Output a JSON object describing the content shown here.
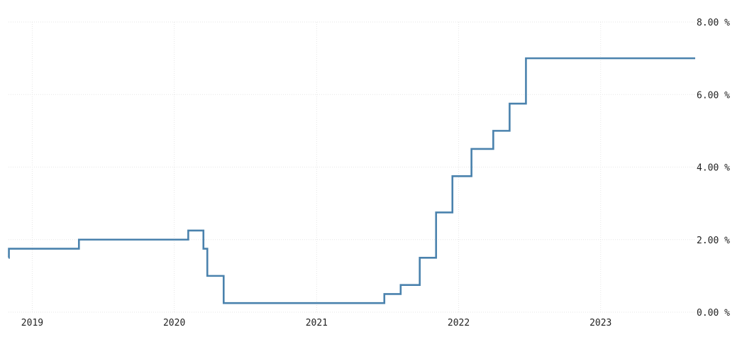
{
  "chart_data": {
    "type": "line",
    "step": true,
    "title": "",
    "xlabel": "",
    "ylabel": "",
    "ylim": [
      0,
      8
    ],
    "xlim": [
      "2018-11-01",
      "2023-09-01"
    ],
    "y_ticks": [
      {
        "value": 0,
        "label": "0.00 %"
      },
      {
        "value": 2,
        "label": "2.00 %"
      },
      {
        "value": 4,
        "label": "4.00 %"
      },
      {
        "value": 6,
        "label": "6.00 %"
      },
      {
        "value": 8,
        "label": "8.00 %"
      }
    ],
    "x_ticks": [
      {
        "value": "2019-01-01",
        "label": "2019"
      },
      {
        "value": "2020-01-01",
        "label": "2020"
      },
      {
        "value": "2021-01-01",
        "label": "2021"
      },
      {
        "value": "2022-01-01",
        "label": "2022"
      },
      {
        "value": "2023-01-01",
        "label": "2023"
      }
    ],
    "grid": true,
    "y_axis_position": "right",
    "series": [
      {
        "color": "#4a82ad",
        "points": [
          {
            "x": "2018-11-01",
            "y": 1.5
          },
          {
            "x": "2018-11-02",
            "y": 1.75
          },
          {
            "x": "2019-05-01",
            "y": 2.0
          },
          {
            "x": "2020-02-06",
            "y": 2.25
          },
          {
            "x": "2020-03-16",
            "y": 1.75
          },
          {
            "x": "2020-03-26",
            "y": 1.0
          },
          {
            "x": "2020-05-07",
            "y": 0.25
          },
          {
            "x": "2021-06-24",
            "y": 0.5
          },
          {
            "x": "2021-08-05",
            "y": 0.75
          },
          {
            "x": "2021-09-23",
            "y": 1.5
          },
          {
            "x": "2021-11-04",
            "y": 2.75
          },
          {
            "x": "2021-12-16",
            "y": 3.75
          },
          {
            "x": "2022-02-03",
            "y": 4.5
          },
          {
            "x": "2022-03-31",
            "y": 5.0
          },
          {
            "x": "2022-05-12",
            "y": 5.75
          },
          {
            "x": "2022-06-23",
            "y": 7.0
          },
          {
            "x": "2023-09-01",
            "y": 7.0
          }
        ]
      }
    ]
  }
}
